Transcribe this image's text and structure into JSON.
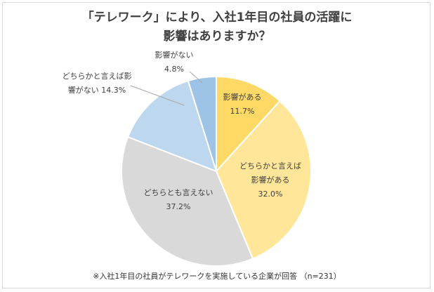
{
  "chart_data": {
    "type": "pie",
    "title_line1": "「テレワーク」により、入社1年目の社員の活躍に",
    "title_line2": "影響はありますか？",
    "slices": [
      {
        "label": "影響がある",
        "value": 11.7,
        "value_text": "11.7%",
        "color": "#FFD966"
      },
      {
        "label": "どちらかと言えば影響がある",
        "value": 32.0,
        "value_text": "32.0%",
        "color": "#FFE699"
      },
      {
        "label": "どちらとも言えない",
        "value": 37.2,
        "value_text": "37.2%",
        "color": "#D9D9D9"
      },
      {
        "label": "どちらかと言えば影響がない",
        "value": 14.3,
        "value_text": "14.3%",
        "color": "#BDD7EE"
      },
      {
        "label": "影響がない",
        "value": 4.8,
        "value_text": "4.8%",
        "color": "#9DC3E6"
      }
    ],
    "footnote": "※入社1年目の社員がテレワークを実施している企業が回答 （n=231）"
  }
}
